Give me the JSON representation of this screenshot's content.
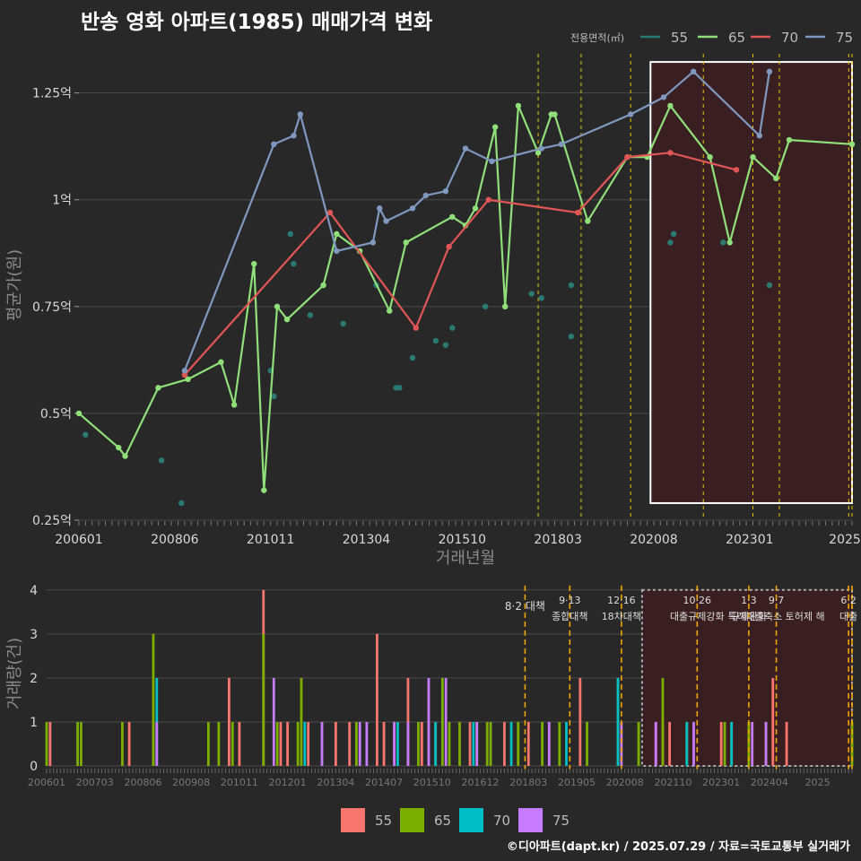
{
  "title": "반송 영화 아파트(1985) 매매가격 변화",
  "footer": "©디아파트(dapt.kr) / 2025.07.29 / 자료=국토교통부 실거래가",
  "colors": {
    "background": "#282828",
    "grid": "#4a4a4a",
    "policy_line": "#e6c200",
    "highlight_fill": "#3a1f22",
    "series": {
      "55": "#2a7a74",
      "65": "#90e07a",
      "70": "#e05555",
      "75": "#7f98c0"
    },
    "bar_series": {
      "55": "#f8766d",
      "65": "#7cae00",
      "70": "#00bfc4",
      "75": "#c77cff"
    }
  },
  "chart_data": [
    {
      "type": "line",
      "ylabel": "평균가(원)",
      "xlabel": "거래년월",
      "x_tick_labels": [
        "200601",
        "200806",
        "201011",
        "201304",
        "201510",
        "201803",
        "202008",
        "202301",
        "2025"
      ],
      "y_tick_labels": [
        "0.25억",
        "0.5억",
        "0.75억",
        "1억",
        "1.25억"
      ],
      "y_range": [
        0.25,
        1.35
      ],
      "x_range": [
        "2006-01",
        "2025-07"
      ],
      "grid": true,
      "legend_title": "전용면적(㎡)",
      "legend_position": "top-right",
      "policy_dates": [
        "2017-08",
        "2018-09",
        "2019-12",
        "2021-10",
        "2023-01",
        "2023-09",
        "2025-06",
        "2025-07"
      ],
      "highlight_range": [
        "2020-06",
        "2025-07"
      ],
      "series": [
        {
          "name": "55",
          "points": [
            [
              "2006-03",
              0.45
            ],
            [
              "2008-02",
              0.39
            ],
            [
              "2008-08",
              0.29
            ],
            [
              "2010-11",
              0.6
            ],
            [
              "2010-12",
              0.54
            ],
            [
              "2011-05",
              0.92
            ],
            [
              "2011-06",
              0.85
            ],
            [
              "2011-11",
              0.73
            ],
            [
              "2012-09",
              0.71
            ],
            [
              "2013-07",
              0.8
            ],
            [
              "2014-01",
              0.56
            ],
            [
              "2014-02",
              0.56
            ],
            [
              "2014-06",
              0.63
            ],
            [
              "2015-01",
              0.67
            ],
            [
              "2015-04",
              0.66
            ],
            [
              "2015-06",
              0.7
            ],
            [
              "2016-04",
              0.75
            ],
            [
              "2017-06",
              0.78
            ],
            [
              "2017-09",
              0.77
            ],
            [
              "2018-06",
              0.8
            ],
            [
              "2018-06",
              0.68
            ],
            [
              "2020-12",
              0.9
            ],
            [
              "2021-01",
              0.92
            ],
            [
              "2022-04",
              0.9
            ],
            [
              "2023-06",
              0.8
            ]
          ]
        },
        {
          "name": "65",
          "points": [
            [
              "2006-01",
              0.5
            ],
            [
              "2007-01",
              0.42
            ],
            [
              "2007-03",
              0.4
            ],
            [
              "2008-01",
              0.56
            ],
            [
              "2008-10",
              0.58
            ],
            [
              "2009-08",
              0.62
            ],
            [
              "2009-12",
              0.52
            ],
            [
              "2010-06",
              0.85
            ],
            [
              "2010-09",
              0.32
            ],
            [
              "2011-01",
              0.75
            ],
            [
              "2011-04",
              0.72
            ],
            [
              "2012-03",
              0.8
            ],
            [
              "2012-07",
              0.92
            ],
            [
              "2013-02",
              0.88
            ],
            [
              "2013-11",
              0.74
            ],
            [
              "2014-04",
              0.9
            ],
            [
              "2015-06",
              0.96
            ],
            [
              "2015-10",
              0.94
            ],
            [
              "2016-01",
              0.98
            ],
            [
              "2016-07",
              1.17
            ],
            [
              "2016-10",
              0.75
            ],
            [
              "2017-02",
              1.22
            ],
            [
              "2017-08",
              1.11
            ],
            [
              "2017-12",
              1.2
            ],
            [
              "2018-01",
              1.2
            ],
            [
              "2018-11",
              0.95
            ],
            [
              "2019-11",
              1.1
            ],
            [
              "2020-05",
              1.1
            ],
            [
              "2020-12",
              1.22
            ],
            [
              "2021-12",
              1.1
            ],
            [
              "2022-06",
              0.9
            ],
            [
              "2023-01",
              1.1
            ],
            [
              "2023-08",
              1.05
            ],
            [
              "2023-12",
              1.14
            ],
            [
              "2025-07",
              1.13
            ]
          ]
        },
        {
          "name": "70",
          "points": [
            [
              "2008-09",
              0.59
            ],
            [
              "2012-05",
              0.97
            ],
            [
              "2014-07",
              0.7
            ],
            [
              "2015-05",
              0.89
            ],
            [
              "2016-05",
              1.0
            ],
            [
              "2018-08",
              0.97
            ],
            [
              "2019-11",
              1.1
            ],
            [
              "2020-12",
              1.11
            ],
            [
              "2022-08",
              1.07
            ]
          ]
        },
        {
          "name": "75",
          "points": [
            [
              "2008-09",
              0.6
            ],
            [
              "2010-12",
              1.13
            ],
            [
              "2011-06",
              1.15
            ],
            [
              "2011-08",
              1.2
            ],
            [
              "2012-07",
              0.88
            ],
            [
              "2013-06",
              0.9
            ],
            [
              "2013-08",
              0.98
            ],
            [
              "2013-10",
              0.95
            ],
            [
              "2014-06",
              0.98
            ],
            [
              "2014-10",
              1.01
            ],
            [
              "2015-04",
              1.02
            ],
            [
              "2015-10",
              1.12
            ],
            [
              "2016-06",
              1.09
            ],
            [
              "2017-09",
              1.12
            ],
            [
              "2018-03",
              1.13
            ],
            [
              "2019-12",
              1.2
            ],
            [
              "2020-10",
              1.24
            ],
            [
              "2021-07",
              1.3
            ],
            [
              "2023-03",
              1.15
            ],
            [
              "2023-06",
              1.3
            ]
          ]
        }
      ]
    },
    {
      "type": "bar",
      "ylabel": "거래량(건)",
      "y_tick_labels": [
        "0",
        "1",
        "2",
        "3",
        "4"
      ],
      "y_range": [
        0,
        4.2
      ],
      "x_tick_labels": [
        "200601",
        "200703",
        "200806",
        "200908",
        "201011",
        "201201",
        "201304",
        "201407",
        "201510",
        "201612",
        "201803",
        "201905",
        "202008",
        "202110",
        "202301",
        "202404",
        "2025"
      ],
      "legend_position": "bottom",
      "policy_labels": [
        {
          "date": "2017-08",
          "text": "8·2 대책"
        },
        {
          "date": "2018-09",
          "line1": "9·13",
          "line2": "종합대책"
        },
        {
          "date": "2019-12",
          "line1": "12·16",
          "line2": "18차대책"
        },
        {
          "date": "2021-10",
          "line1": "10·26",
          "line2": "대출규제강화"
        },
        {
          "date": "2023-01",
          "line1": "1·3",
          "line2": "규제완화"
        },
        {
          "date": "2023-09",
          "line1": "9·7",
          "line2": "특례대출축소 토허제 해"
        },
        {
          "date": "2025-06",
          "line1": "6·2",
          "line2": "대출"
        }
      ],
      "series": [
        {
          "name": "55",
          "bars": [
            [
              "2006-02",
              1
            ],
            [
              "2008-01",
              1
            ],
            [
              "2008-08",
              1
            ],
            [
              "2010-06",
              2
            ],
            [
              "2010-09",
              1
            ],
            [
              "2011-04",
              4
            ],
            [
              "2011-09",
              1
            ],
            [
              "2011-11",
              1
            ],
            [
              "2012-05",
              1
            ],
            [
              "2013-01",
              1
            ],
            [
              "2013-05",
              1
            ],
            [
              "2014-01",
              3
            ],
            [
              "2014-03",
              1
            ],
            [
              "2014-10",
              2
            ],
            [
              "2015-02",
              1
            ],
            [
              "2015-06",
              1
            ],
            [
              "2016-04",
              1
            ],
            [
              "2017-02",
              1
            ],
            [
              "2017-09",
              1
            ],
            [
              "2018-12",
              2
            ],
            [
              "2020-10",
              1
            ],
            [
              "2020-12",
              1
            ],
            [
              "2021-02",
              1
            ],
            [
              "2022-05",
              1
            ],
            [
              "2023-08",
              2
            ],
            [
              "2023-12",
              1
            ]
          ]
        },
        {
          "name": "65",
          "bars": [
            [
              "2006-01",
              1
            ],
            [
              "2006-10",
              1
            ],
            [
              "2006-11",
              1
            ],
            [
              "2007-11",
              1
            ],
            [
              "2008-08",
              3
            ],
            [
              "2009-12",
              1
            ],
            [
              "2010-03",
              1
            ],
            [
              "2010-07",
              1
            ],
            [
              "2011-04",
              3
            ],
            [
              "2011-08",
              1
            ],
            [
              "2012-02",
              1
            ],
            [
              "2012-03",
              2
            ],
            [
              "2013-07",
              1
            ],
            [
              "2014-06",
              1
            ],
            [
              "2015-01",
              1
            ],
            [
              "2015-08",
              2
            ],
            [
              "2015-10",
              1
            ],
            [
              "2016-01",
              1
            ],
            [
              "2016-06",
              1
            ],
            [
              "2016-09",
              1
            ],
            [
              "2016-10",
              1
            ],
            [
              "2017-06",
              1
            ],
            [
              "2018-01",
              1
            ],
            [
              "2018-06",
              1
            ],
            [
              "2019-02",
              1
            ],
            [
              "2019-11",
              2
            ],
            [
              "2020-05",
              1
            ],
            [
              "2020-12",
              2
            ],
            [
              "2021-07",
              1
            ],
            [
              "2022-06",
              1
            ],
            [
              "2022-08",
              1
            ],
            [
              "2023-01",
              1
            ],
            [
              "2023-06",
              1
            ],
            [
              "2025-07",
              1
            ]
          ]
        },
        {
          "name": "70",
          "bars": [
            [
              "2008-09",
              2
            ],
            [
              "2012-04",
              1
            ],
            [
              "2014-07",
              1
            ],
            [
              "2015-06",
              1
            ],
            [
              "2016-05",
              1
            ],
            [
              "2017-04",
              1
            ],
            [
              "2018-08",
              1
            ],
            [
              "2019-11",
              2
            ],
            [
              "2021-07",
              1
            ],
            [
              "2022-08",
              1
            ]
          ]
        },
        {
          "name": "75",
          "bars": [
            [
              "2008-09",
              1
            ],
            [
              "2011-07",
              2
            ],
            [
              "2012-09",
              1
            ],
            [
              "2013-08",
              1
            ],
            [
              "2013-10",
              1
            ],
            [
              "2014-06",
              1
            ],
            [
              "2014-10",
              1
            ],
            [
              "2015-04",
              2
            ],
            [
              "2015-09",
              2
            ],
            [
              "2016-06",
              1
            ],
            [
              "2018-03",
              1
            ],
            [
              "2019-12",
              1
            ],
            [
              "2020-10",
              1
            ],
            [
              "2021-09",
              1
            ],
            [
              "2023-02",
              1
            ],
            [
              "2023-06",
              1
            ]
          ]
        }
      ]
    }
  ]
}
